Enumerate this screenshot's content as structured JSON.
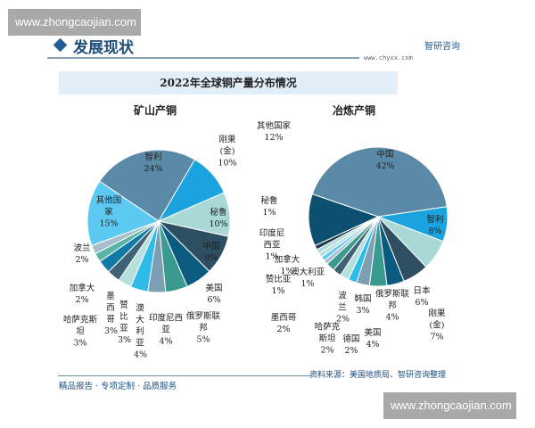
{
  "watermark": "www.zhongcaojian.com",
  "header": {
    "title": "发展现状",
    "brand": "智研咨询",
    "brand_url": "www.chyxx.com"
  },
  "footer": {
    "slogan": "精品报告 · 专项定制 · 品质服务",
    "source": "资料来源：美国地质局、智研咨询整理"
  },
  "chart_data": [
    {
      "type": "pie",
      "title": "2022年全球铜产量分布情况",
      "subtitle": "矿山产铜",
      "slices": [
        {
          "name": "智利",
          "value": 24,
          "color": "#5b8aa8"
        },
        {
          "name": "刚果(金)",
          "value": 10,
          "color": "#1aa3df"
        },
        {
          "name": "秘鲁",
          "value": 10,
          "color": "#a9d9d6"
        },
        {
          "name": "中国",
          "value": 9,
          "color": "#2e4f62"
        },
        {
          "name": "美国",
          "value": 6,
          "color": "#0b5a7f"
        },
        {
          "name": "俄罗斯联邦",
          "value": 5,
          "color": "#3a9a8f"
        },
        {
          "name": "印度尼西亚",
          "value": 4,
          "color": "#7c9fb3"
        },
        {
          "name": "澳大利亚",
          "value": 4,
          "color": "#2fbbe9"
        },
        {
          "name": "赞比亚",
          "value": 3,
          "color": "#b6e0dc"
        },
        {
          "name": "墨西哥",
          "value": 3,
          "color": "#3f6275"
        },
        {
          "name": "哈萨克斯坦",
          "value": 3,
          "color": "#127aa6"
        },
        {
          "name": "加拿大",
          "value": 2,
          "color": "#5ab5a8"
        },
        {
          "name": "波兰",
          "value": 2,
          "color": "#a7bfcc"
        },
        {
          "name": "其他国家",
          "value": 15,
          "color": "#5cc9f2"
        }
      ]
    },
    {
      "type": "pie",
      "subtitle": "冶炼产铜",
      "slices": [
        {
          "name": "中国",
          "value": 42,
          "color": "#5b8aa8"
        },
        {
          "name": "智利",
          "value": 8,
          "color": "#1aa3df"
        },
        {
          "name": "刚果(金)",
          "value": 7,
          "color": "#a9d9d6"
        },
        {
          "name": "日本",
          "value": 6,
          "color": "#2e4f62"
        },
        {
          "name": "俄罗斯联邦",
          "value": 4,
          "color": "#0b5a7f"
        },
        {
          "name": "美国",
          "value": 4,
          "color": "#3a9a8f"
        },
        {
          "name": "韩国",
          "value": 3,
          "color": "#7c9fb3"
        },
        {
          "name": "德国",
          "value": 2,
          "color": "#2fbbe9"
        },
        {
          "name": "波兰",
          "value": 2,
          "color": "#b6e0dc"
        },
        {
          "name": "哈萨克斯坦",
          "value": 2,
          "color": "#3f6275"
        },
        {
          "name": "墨西哥",
          "value": 2,
          "color": "#3a9a8f"
        },
        {
          "name": "赞比亚",
          "value": 1,
          "color": "#a7bfcc"
        },
        {
          "name": "澳大利亚",
          "value": 1,
          "color": "#5cc9f2"
        },
        {
          "name": "加拿大",
          "value": 1,
          "color": "#b6e0dc"
        },
        {
          "name": "印度尼西亚",
          "value": 1,
          "color": "#a9d9d6"
        },
        {
          "name": "秘鲁",
          "value": 1,
          "color": "#1f3d4f"
        },
        {
          "name": "其他国家",
          "value": 12,
          "color": "#0d4f6e"
        }
      ]
    }
  ]
}
